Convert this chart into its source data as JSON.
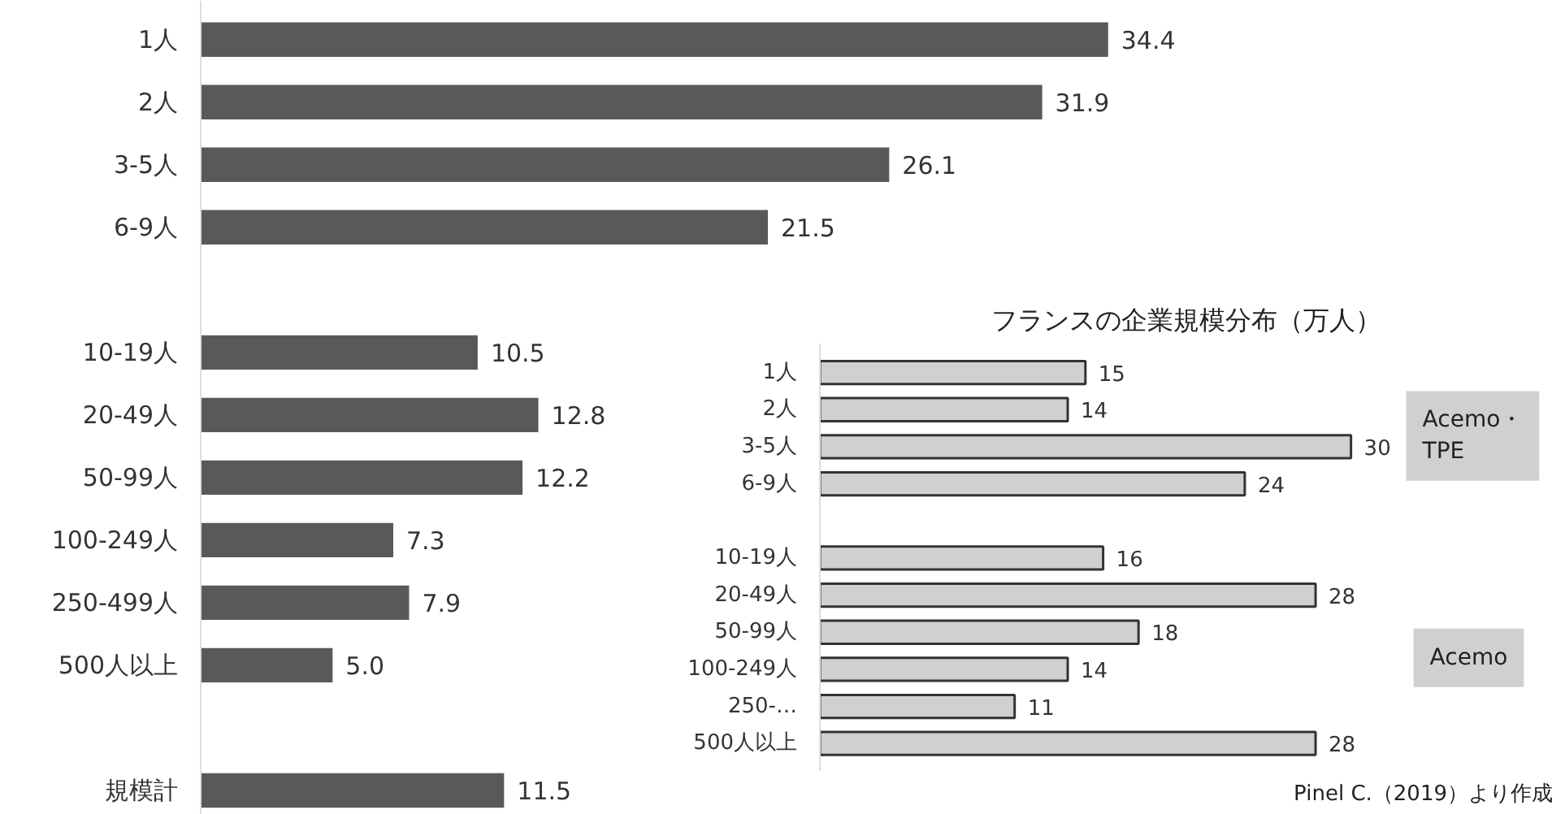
{
  "chart_data": [
    {
      "type": "bar",
      "orientation": "horizontal",
      "categories": [
        "1人",
        "2人",
        "3-5人",
        "6-9人",
        null,
        "10-19人",
        "20-49人",
        "50-99人",
        "100-249人",
        "250-499人",
        "500人以上",
        null,
        "規模計"
      ],
      "values": [
        34.4,
        31.9,
        26.1,
        21.5,
        null,
        10.5,
        12.8,
        12.2,
        7.3,
        7.9,
        5.0,
        null,
        11.5
      ],
      "value_labels": [
        "34.4",
        "31.9",
        "26.1",
        "21.5",
        null,
        "10.5",
        "12.8",
        "12.2",
        "7.3",
        "7.9",
        "5.0",
        null,
        "11.5"
      ],
      "color": "#595959",
      "tick_labels": "y",
      "grid": false
    },
    {
      "type": "bar",
      "orientation": "horizontal",
      "title": "フランスの企業規模分布（万人）",
      "categories": [
        "1人",
        "2人",
        "3-5人",
        "6-9人",
        null,
        "10-19人",
        "20-49人",
        "50-99人",
        "100-249人",
        "250-…",
        "500人以上"
      ],
      "values": [
        15,
        14,
        30,
        24,
        null,
        16,
        28,
        18,
        14,
        11,
        28
      ],
      "color": "#d0d0d0",
      "data_labels": true,
      "tick_labels": "y",
      "grid": false,
      "annotations": [
        "Acemo・\nTPE",
        "Acemo",
        "Pinel C.（2019）より作成"
      ]
    }
  ]
}
